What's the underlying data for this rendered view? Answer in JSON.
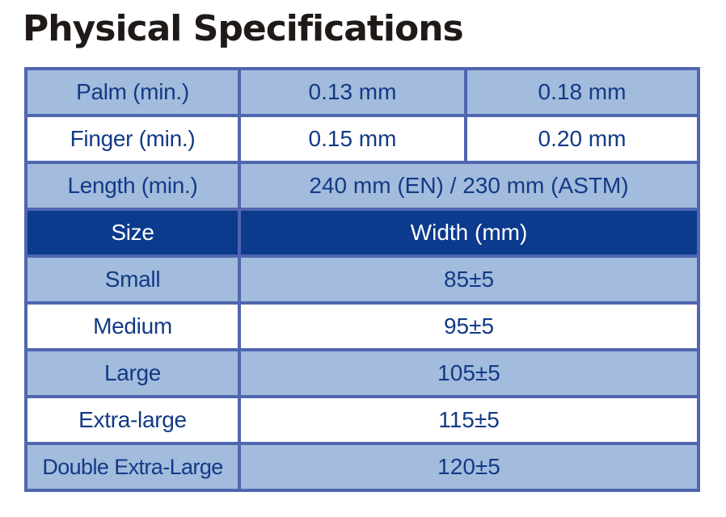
{
  "title": "Physical Specifications",
  "thickness_rows": [
    {
      "label": "Palm (min.)",
      "value_1": "0.13 mm",
      "value_2": "0.18 mm"
    },
    {
      "label": "Finger (min.)",
      "value_1": "0.15 mm",
      "value_2": "0.20 mm"
    }
  ],
  "length_row": {
    "label": "Length (min.)",
    "value": "240 mm (EN) / 230 mm (ASTM)"
  },
  "size_table": {
    "header": {
      "size": "Size",
      "width": "Width (mm)"
    },
    "rows": [
      {
        "size": "Small",
        "width": "85±5"
      },
      {
        "size": "Medium",
        "width": "95±5"
      },
      {
        "size": "Large",
        "width": "105±5"
      },
      {
        "size": "Extra-large",
        "width": "115±5"
      },
      {
        "size": "Double Extra-Large",
        "width": "120±5"
      }
    ]
  },
  "colors": {
    "row_shade": "#a3bbdc",
    "header_bg": "#0c3a8c",
    "border": "#4f66b0",
    "text": "#123a86",
    "title_text": "#1f1a17"
  }
}
